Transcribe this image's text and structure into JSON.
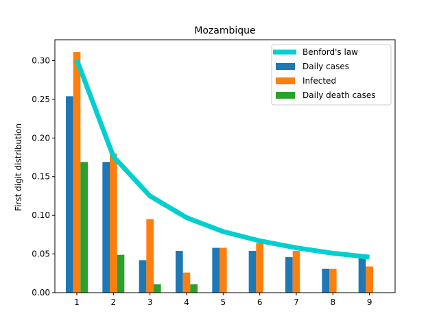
{
  "chart_data": {
    "type": "bar",
    "title": "Mozambique",
    "xlabel": "",
    "ylabel": "First digit distribution",
    "categories": [
      "1",
      "2",
      "3",
      "4",
      "5",
      "6",
      "7",
      "8",
      "9"
    ],
    "x": [
      1,
      2,
      3,
      4,
      5,
      6,
      7,
      8,
      9
    ],
    "xlim": [
      0.4,
      9.7
    ],
    "ylim": [
      0,
      0.327
    ],
    "yticks": [
      0.0,
      0.05,
      0.1,
      0.15,
      0.2,
      0.25,
      0.3
    ],
    "ytick_labels": [
      "0.00",
      "0.05",
      "0.10",
      "0.15",
      "0.20",
      "0.25",
      "0.30"
    ],
    "grid": false,
    "legend_position": "top-right",
    "line_series": {
      "name": "Benford's law",
      "color": "#00cfcf",
      "values": [
        0.301,
        0.176,
        0.125,
        0.097,
        0.079,
        0.067,
        0.058,
        0.051,
        0.046
      ]
    },
    "series": [
      {
        "name": "Daily cases",
        "color": "#1f77b4",
        "values": [
          0.254,
          0.169,
          0.042,
          0.054,
          0.058,
          0.054,
          0.046,
          0.031,
          0.046
        ]
      },
      {
        "name": "Infected",
        "color": "#ff7f0e",
        "values": [
          0.311,
          0.18,
          0.095,
          0.026,
          0.058,
          0.064,
          0.054,
          0.031,
          0.034
        ]
      },
      {
        "name": "Daily death cases",
        "color": "#2ca02c",
        "values": [
          0.169,
          0.049,
          0.011,
          0.011,
          0.0,
          0.0,
          0.0,
          0.0,
          0.0
        ]
      }
    ]
  }
}
